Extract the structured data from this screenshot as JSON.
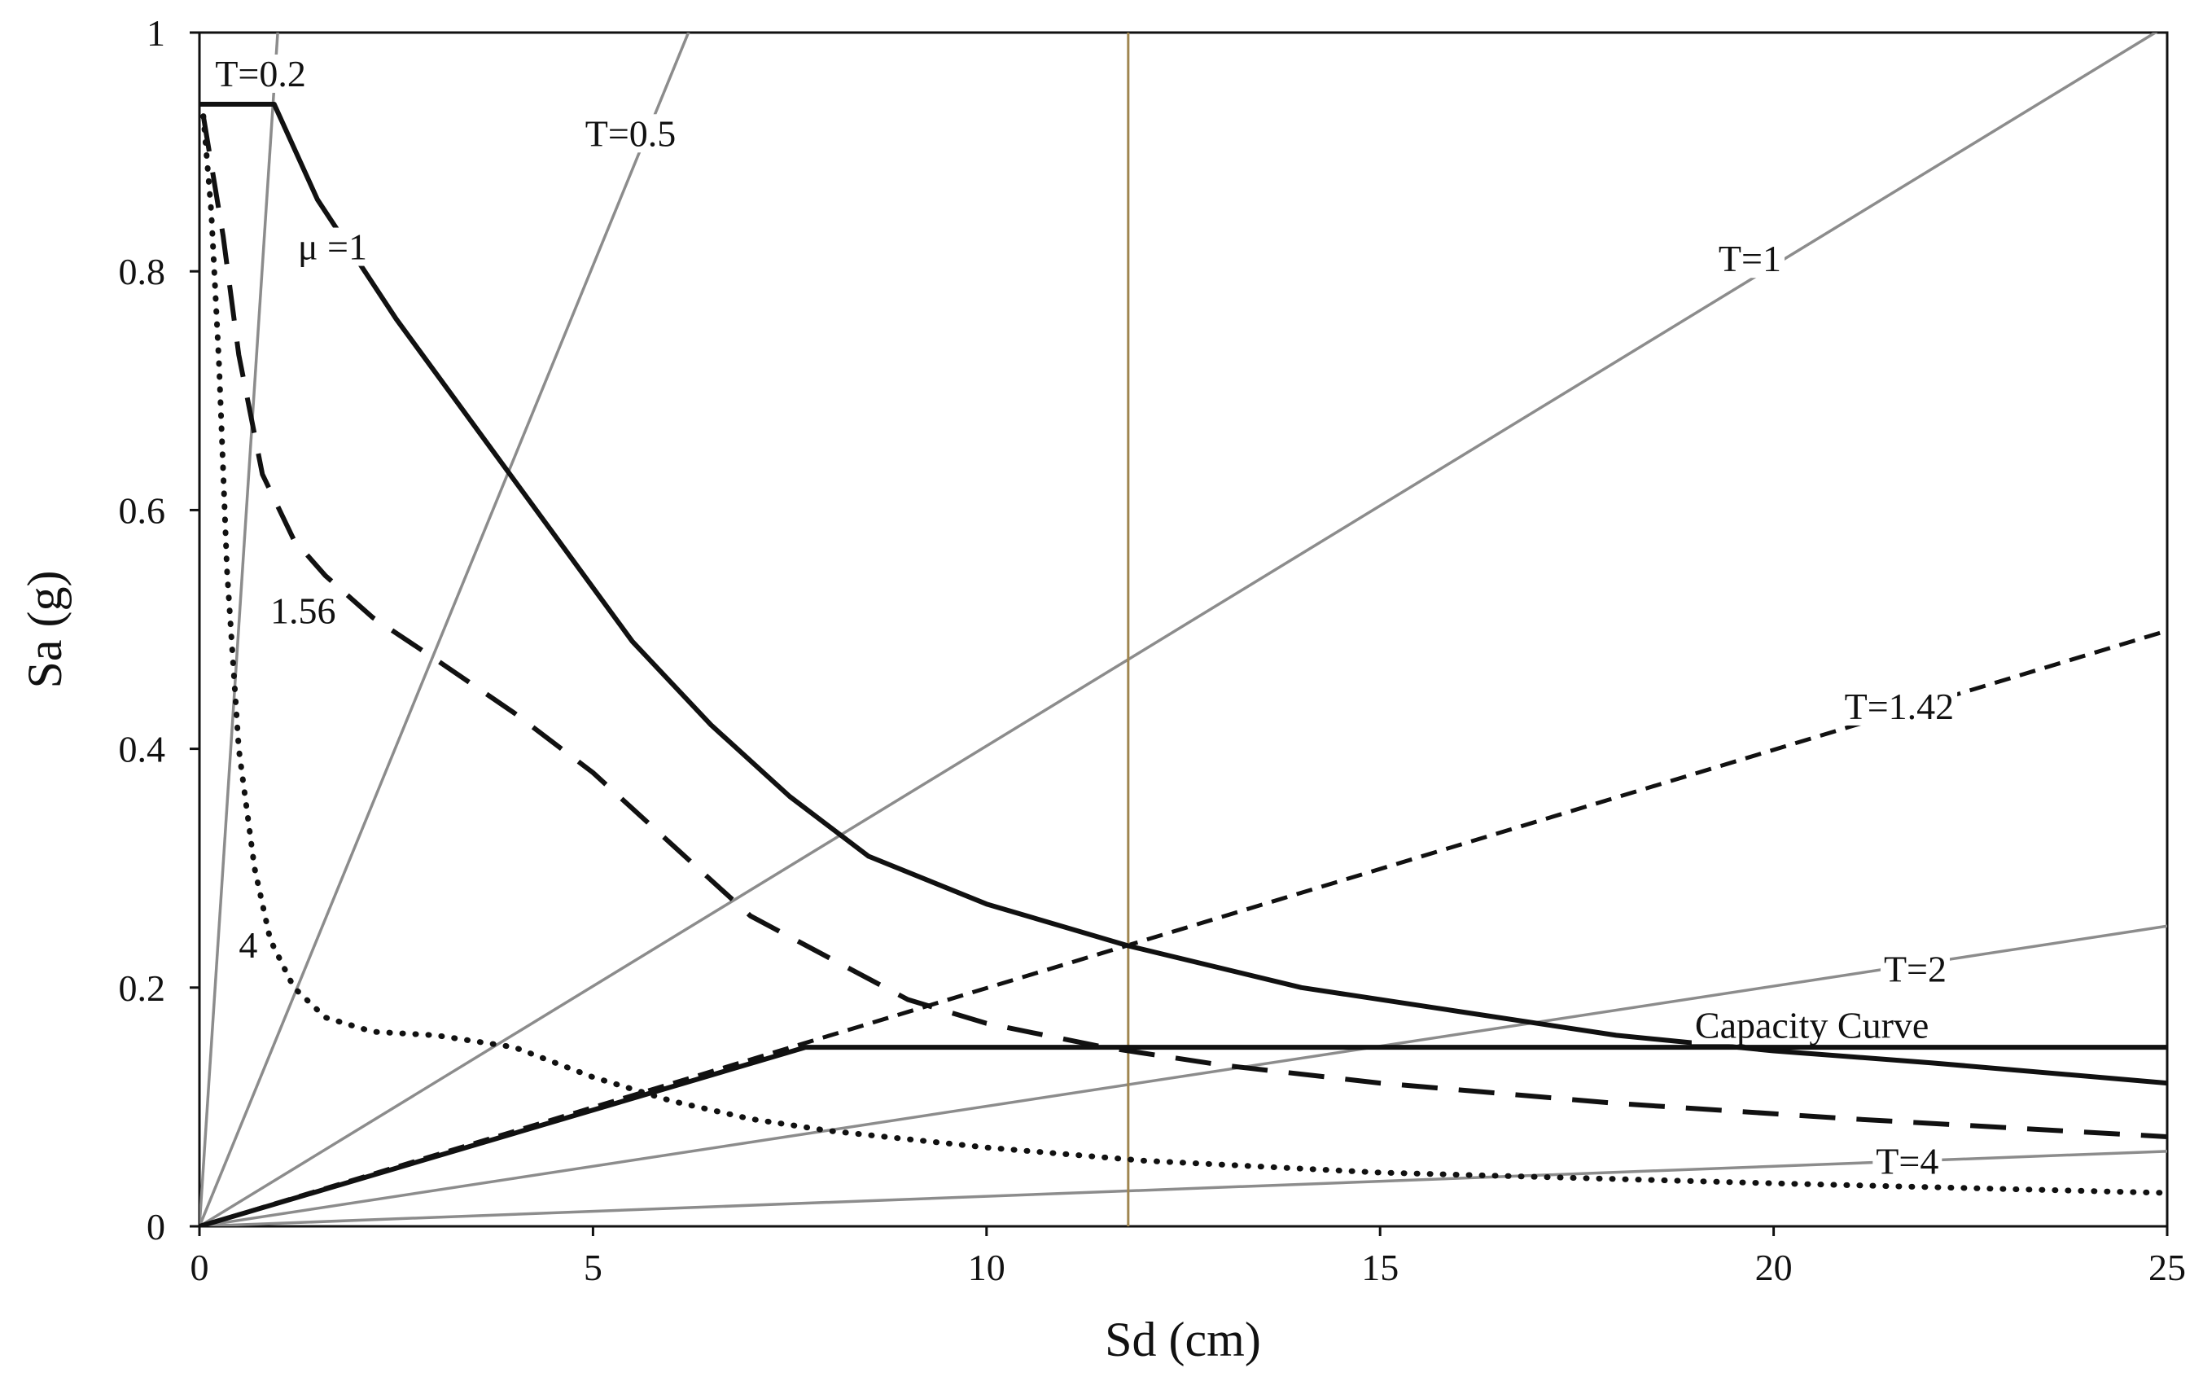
{
  "chart_data": {
    "type": "line",
    "title": "",
    "xlabel": "Sd (cm)",
    "ylabel": "Sa (g)",
    "xlim": [
      0,
      25
    ],
    "ylim": [
      0,
      1
    ],
    "xticks": [
      "0",
      "5",
      "10",
      "15",
      "20",
      "25"
    ],
    "yticks": [
      "0",
      "0.2",
      "0.4",
      "0.6",
      "0.8",
      "1"
    ],
    "grid": false,
    "legend": "none",
    "colors": {
      "axis": "#111111",
      "period_line": "#8c8c8c",
      "vertical_line": "#a08650",
      "curve": "#111111"
    },
    "period_lines": [
      {
        "label": "T=0.2",
        "T": 0.2,
        "style": "solid-gray"
      },
      {
        "label": "T=0.5",
        "T": 0.5,
        "style": "solid-gray"
      },
      {
        "label": "T=1",
        "T": 1,
        "style": "solid-gray"
      },
      {
        "label": "T=1.42",
        "T": 1.42,
        "style": "dashed-black"
      },
      {
        "label": "T=2",
        "T": 2,
        "style": "solid-gray"
      },
      {
        "label": "T=4",
        "T": 4,
        "style": "solid-gray"
      }
    ],
    "vertical_line": {
      "x": 11.8
    },
    "series": [
      {
        "name": "μ =1",
        "style": "solid-thick",
        "x": [
          0,
          0.95,
          1.5,
          2.5,
          3.5,
          4.5,
          5.5,
          6.5,
          7.5,
          8.5,
          10,
          11.8,
          14,
          16,
          18,
          20,
          22,
          25
        ],
        "y": [
          0.94,
          0.94,
          0.86,
          0.76,
          0.67,
          0.58,
          0.49,
          0.42,
          0.36,
          0.31,
          0.27,
          0.235,
          0.2,
          0.18,
          0.16,
          0.147,
          0.137,
          0.12
        ]
      },
      {
        "name": "1.56",
        "style": "dashed-long",
        "x": [
          0.05,
          0.3,
          0.5,
          0.8,
          1.2,
          1.6,
          2.2,
          3,
          4,
          5,
          6,
          7,
          8,
          9,
          10,
          11.5,
          13,
          15,
          18,
          21,
          25
        ],
        "y": [
          0.93,
          0.83,
          0.73,
          0.63,
          0.575,
          0.545,
          0.51,
          0.475,
          0.43,
          0.38,
          0.32,
          0.26,
          0.225,
          0.19,
          0.17,
          0.15,
          0.135,
          0.12,
          0.103,
          0.09,
          0.075
        ]
      },
      {
        "name": "4",
        "style": "dotted",
        "x": [
          0.05,
          0.15,
          0.25,
          0.35,
          0.5,
          0.7,
          0.9,
          1.2,
          1.6,
          2.2,
          3,
          4,
          5,
          6,
          7,
          8,
          9,
          10,
          12,
          15,
          20,
          25
        ],
        "y": [
          0.93,
          0.85,
          0.72,
          0.55,
          0.4,
          0.3,
          0.24,
          0.2,
          0.175,
          0.163,
          0.16,
          0.15,
          0.125,
          0.105,
          0.09,
          0.08,
          0.073,
          0.066,
          0.055,
          0.045,
          0.036,
          0.028
        ]
      },
      {
        "name": "Capacity Curve",
        "style": "solid-thick",
        "x": [
          0,
          7.7,
          25
        ],
        "y": [
          0,
          0.15,
          0.15
        ]
      }
    ],
    "annotations": [
      "T=0.2",
      "T=0.5",
      "T=1",
      "T=1.42",
      "T=2",
      "T=4",
      "μ =1",
      "1.56",
      "4",
      "Capacity Curve"
    ]
  }
}
